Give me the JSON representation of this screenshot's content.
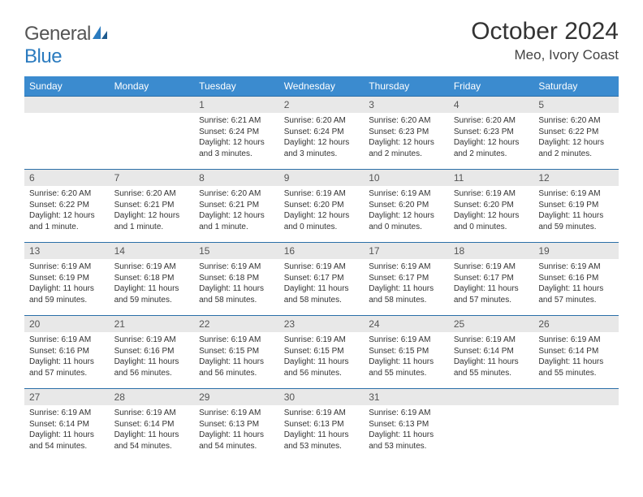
{
  "logo": {
    "text_gray": "General",
    "text_blue": "Blue"
  },
  "title": "October 2024",
  "location": "Meo, Ivory Coast",
  "colors": {
    "header_bg": "#3b8bcf",
    "header_text": "#ffffff",
    "daynum_bg": "#e8e8e8",
    "row_border": "#2b6fa8",
    "logo_blue": "#2b7bbf",
    "logo_gray": "#555555"
  },
  "day_headers": [
    "Sunday",
    "Monday",
    "Tuesday",
    "Wednesday",
    "Thursday",
    "Friday",
    "Saturday"
  ],
  "weeks": [
    [
      null,
      null,
      {
        "n": "1",
        "sr": "6:21 AM",
        "ss": "6:24 PM",
        "dl": "12 hours and 3 minutes."
      },
      {
        "n": "2",
        "sr": "6:20 AM",
        "ss": "6:24 PM",
        "dl": "12 hours and 3 minutes."
      },
      {
        "n": "3",
        "sr": "6:20 AM",
        "ss": "6:23 PM",
        "dl": "12 hours and 2 minutes."
      },
      {
        "n": "4",
        "sr": "6:20 AM",
        "ss": "6:23 PM",
        "dl": "12 hours and 2 minutes."
      },
      {
        "n": "5",
        "sr": "6:20 AM",
        "ss": "6:22 PM",
        "dl": "12 hours and 2 minutes."
      }
    ],
    [
      {
        "n": "6",
        "sr": "6:20 AM",
        "ss": "6:22 PM",
        "dl": "12 hours and 1 minute."
      },
      {
        "n": "7",
        "sr": "6:20 AM",
        "ss": "6:21 PM",
        "dl": "12 hours and 1 minute."
      },
      {
        "n": "8",
        "sr": "6:20 AM",
        "ss": "6:21 PM",
        "dl": "12 hours and 1 minute."
      },
      {
        "n": "9",
        "sr": "6:19 AM",
        "ss": "6:20 PM",
        "dl": "12 hours and 0 minutes."
      },
      {
        "n": "10",
        "sr": "6:19 AM",
        "ss": "6:20 PM",
        "dl": "12 hours and 0 minutes."
      },
      {
        "n": "11",
        "sr": "6:19 AM",
        "ss": "6:20 PM",
        "dl": "12 hours and 0 minutes."
      },
      {
        "n": "12",
        "sr": "6:19 AM",
        "ss": "6:19 PM",
        "dl": "11 hours and 59 minutes."
      }
    ],
    [
      {
        "n": "13",
        "sr": "6:19 AM",
        "ss": "6:19 PM",
        "dl": "11 hours and 59 minutes."
      },
      {
        "n": "14",
        "sr": "6:19 AM",
        "ss": "6:18 PM",
        "dl": "11 hours and 59 minutes."
      },
      {
        "n": "15",
        "sr": "6:19 AM",
        "ss": "6:18 PM",
        "dl": "11 hours and 58 minutes."
      },
      {
        "n": "16",
        "sr": "6:19 AM",
        "ss": "6:17 PM",
        "dl": "11 hours and 58 minutes."
      },
      {
        "n": "17",
        "sr": "6:19 AM",
        "ss": "6:17 PM",
        "dl": "11 hours and 58 minutes."
      },
      {
        "n": "18",
        "sr": "6:19 AM",
        "ss": "6:17 PM",
        "dl": "11 hours and 57 minutes."
      },
      {
        "n": "19",
        "sr": "6:19 AM",
        "ss": "6:16 PM",
        "dl": "11 hours and 57 minutes."
      }
    ],
    [
      {
        "n": "20",
        "sr": "6:19 AM",
        "ss": "6:16 PM",
        "dl": "11 hours and 57 minutes."
      },
      {
        "n": "21",
        "sr": "6:19 AM",
        "ss": "6:16 PM",
        "dl": "11 hours and 56 minutes."
      },
      {
        "n": "22",
        "sr": "6:19 AM",
        "ss": "6:15 PM",
        "dl": "11 hours and 56 minutes."
      },
      {
        "n": "23",
        "sr": "6:19 AM",
        "ss": "6:15 PM",
        "dl": "11 hours and 56 minutes."
      },
      {
        "n": "24",
        "sr": "6:19 AM",
        "ss": "6:15 PM",
        "dl": "11 hours and 55 minutes."
      },
      {
        "n": "25",
        "sr": "6:19 AM",
        "ss": "6:14 PM",
        "dl": "11 hours and 55 minutes."
      },
      {
        "n": "26",
        "sr": "6:19 AM",
        "ss": "6:14 PM",
        "dl": "11 hours and 55 minutes."
      }
    ],
    [
      {
        "n": "27",
        "sr": "6:19 AM",
        "ss": "6:14 PM",
        "dl": "11 hours and 54 minutes."
      },
      {
        "n": "28",
        "sr": "6:19 AM",
        "ss": "6:14 PM",
        "dl": "11 hours and 54 minutes."
      },
      {
        "n": "29",
        "sr": "6:19 AM",
        "ss": "6:13 PM",
        "dl": "11 hours and 54 minutes."
      },
      {
        "n": "30",
        "sr": "6:19 AM",
        "ss": "6:13 PM",
        "dl": "11 hours and 53 minutes."
      },
      {
        "n": "31",
        "sr": "6:19 AM",
        "ss": "6:13 PM",
        "dl": "11 hours and 53 minutes."
      },
      null,
      null
    ]
  ],
  "labels": {
    "sr_prefix": "Sunrise: ",
    "ss_prefix": "Sunset: ",
    "dl_prefix": "Daylight: "
  }
}
